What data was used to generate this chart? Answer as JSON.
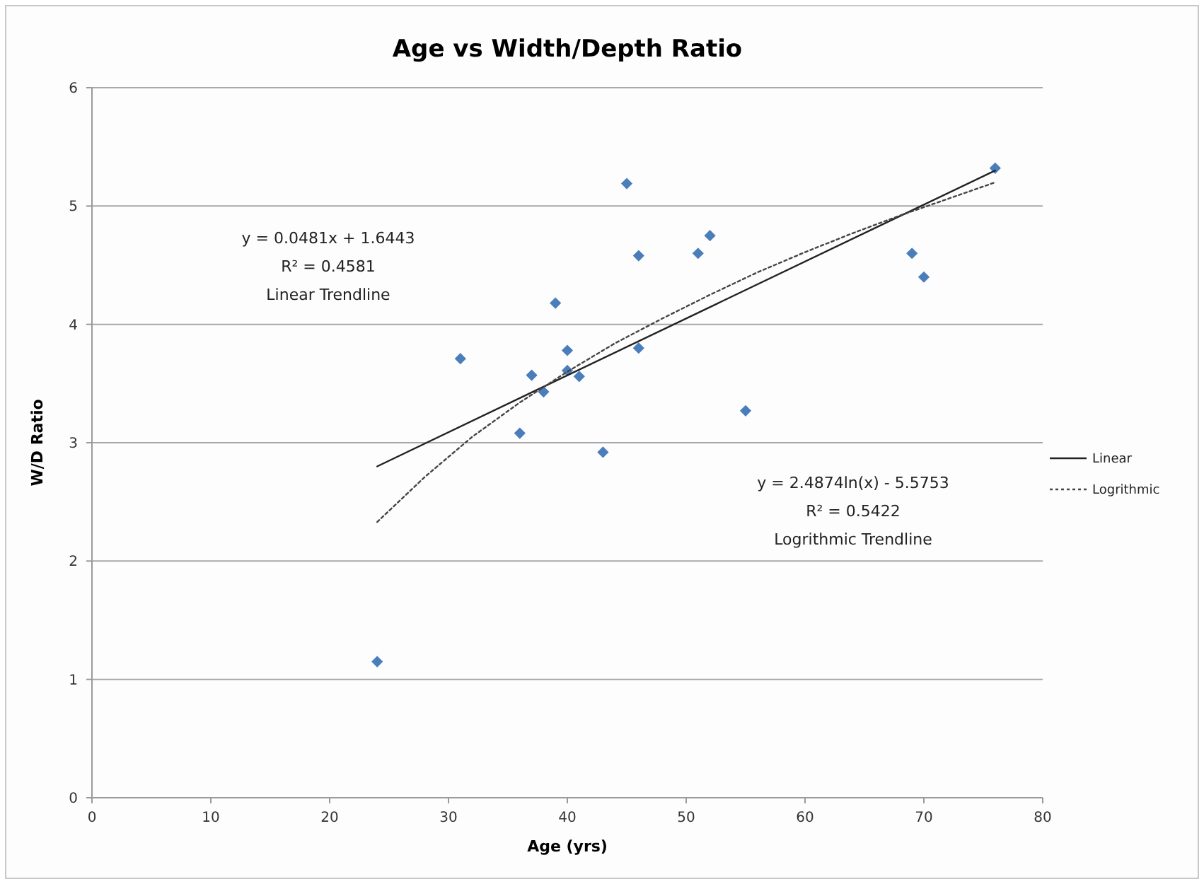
{
  "chart_data": {
    "type": "scatter",
    "title": "Age vs Width/Depth Ratio",
    "xlabel": "Age (yrs)",
    "ylabel": "W/D Ratio",
    "xlim": [
      0,
      80
    ],
    "xticks": [
      0,
      10,
      20,
      30,
      40,
      50,
      60,
      70,
      80
    ],
    "ylim": [
      0,
      6
    ],
    "yticks": [
      0,
      1,
      2,
      3,
      4,
      5,
      6
    ],
    "grid": "y",
    "legend": "right",
    "marker": "diamond",
    "series": [
      {
        "color": "#4a7ebb",
        "x": [
          24,
          31,
          36,
          37,
          38,
          39,
          40,
          40,
          41,
          43,
          45,
          46,
          46,
          51,
          52,
          55,
          69,
          70,
          76
        ],
        "values": [
          1.15,
          3.71,
          3.08,
          3.57,
          3.43,
          4.18,
          3.78,
          3.61,
          3.56,
          2.92,
          5.19,
          4.58,
          3.8,
          4.6,
          4.75,
          3.27,
          4.6,
          4.4,
          5.32
        ]
      },
      {
        "type": "line",
        "name": "Linear",
        "color": "#222222",
        "line_style": "solid",
        "marker": "none",
        "x": [
          24,
          76
        ],
        "values": [
          2.8,
          5.3
        ]
      },
      {
        "type": "line",
        "name": "Logrithmic",
        "color": "#444444",
        "line_style": "dotted",
        "marker": "none",
        "x": [
          24,
          28,
          32,
          36,
          40,
          44,
          48,
          52,
          56,
          60,
          64,
          68,
          72,
          76
        ],
        "values": [
          2.33,
          2.71,
          3.05,
          3.34,
          3.6,
          3.84,
          4.05,
          4.25,
          4.44,
          4.61,
          4.77,
          4.92,
          5.06,
          5.2
        ]
      }
    ],
    "annotations": [
      "y = 0.0481x + 1.6443",
      "R² = 0.4581",
      "Linear Trendline",
      "y = 2.4874ln(x) - 5.5753",
      "R² = 0.5422",
      "Logrithmic Trendline"
    ]
  }
}
